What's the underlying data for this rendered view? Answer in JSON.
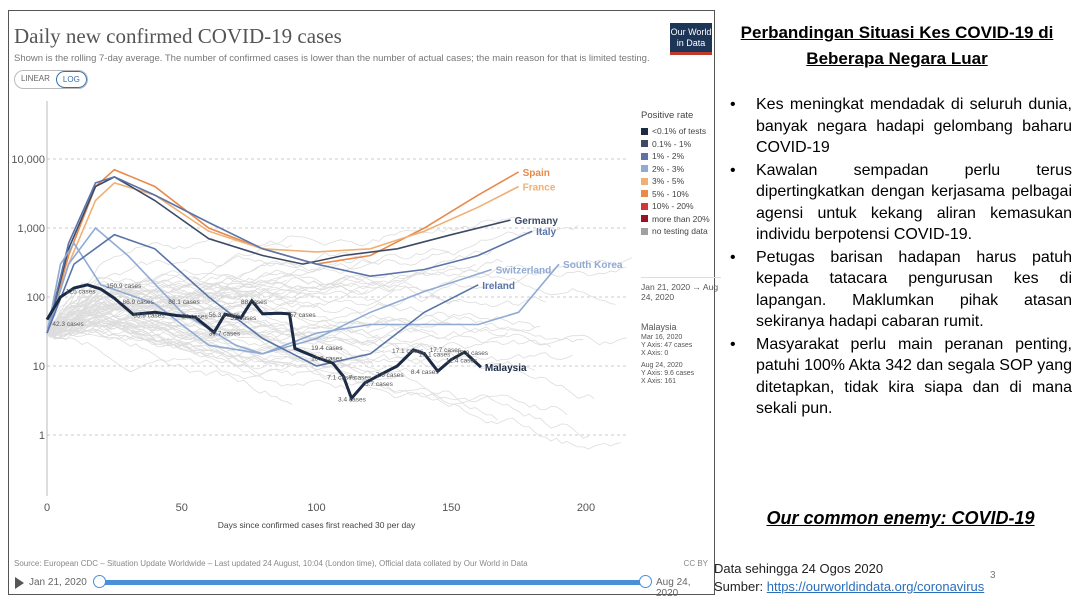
{
  "chart_panel": {
    "title": "Daily new confirmed COVID-19 cases",
    "subtitle": "Shown is the rolling 7-day average. The number of confirmed cases is lower than the number of actual cases; the main reason for that is limited testing.",
    "scale_toggle": {
      "linear": "LINEAR",
      "log": "LOG",
      "selected": "LOG"
    },
    "logo_text": "Our World in Data",
    "source": "Source: European CDC – Situation Update Worldwide – Last updated 24 August, 10:04 (London time), Official data collated by Our World in Data",
    "license": "CC BY",
    "timeline": {
      "start": "Jan 21, 2020",
      "end": "Aug 24, 2020",
      "range_start_fraction": 0,
      "range_end_fraction": 1
    },
    "legend": {
      "title": "Positive rate",
      "items": [
        {
          "label": "<0.1% of tests",
          "color": "#1c2b45"
        },
        {
          "label": "0.1% - 1%",
          "color": "#3d4a66"
        },
        {
          "label": "1% - 2%",
          "color": "#5a74a8"
        },
        {
          "label": "2% - 3%",
          "color": "#8faad3"
        },
        {
          "label": "3% - 5%",
          "color": "#f0b074"
        },
        {
          "label": "5% - 10%",
          "color": "#e98a4c"
        },
        {
          "label": "10% - 20%",
          "color": "#d6333b"
        },
        {
          "label": "more than 20%",
          "color": "#9b1126"
        },
        {
          "label": "no testing data",
          "color": "#a0a0a0"
        }
      ]
    },
    "time_range": {
      "start": "Jan 21, 2020",
      "end": "Aug 24, 2020"
    },
    "info": {
      "country": "Malaysia",
      "start_date": "Mar 16, 2020",
      "start_y": "Y Axis: 47 cases",
      "start_x": "X Axis: 0",
      "end_date": "Aug 24, 2020",
      "end_y": "Y Axis: 9.6 cases",
      "end_x": "X Axis: 161"
    }
  },
  "chart_data": {
    "type": "line",
    "title": "Daily new confirmed COVID-19 cases",
    "xlabel": "Days since confirmed cases first reached 30 per day",
    "ylabel": "",
    "xlim": [
      0,
      225
    ],
    "ylim": [
      0.5,
      50000
    ],
    "yscale": "log",
    "x_ticks": [
      0,
      50,
      100,
      150,
      200
    ],
    "y_ticks": [
      {
        "v": 1,
        "label": "1"
      },
      {
        "v": 10,
        "label": "10"
      },
      {
        "v": 100,
        "label": "100"
      },
      {
        "v": 1000,
        "label": "1,000"
      },
      {
        "v": 10000,
        "label": "10,000"
      }
    ],
    "series": [
      {
        "name": "Spain",
        "color": "#e98a4c",
        "points": [
          [
            0,
            30
          ],
          [
            8,
            400
          ],
          [
            18,
            4000
          ],
          [
            25,
            7000
          ],
          [
            40,
            4000
          ],
          [
            60,
            1000
          ],
          [
            80,
            500
          ],
          [
            100,
            300
          ],
          [
            120,
            400
          ],
          [
            140,
            1000
          ],
          [
            160,
            3000
          ],
          [
            175,
            6500
          ]
        ]
      },
      {
        "name": "France",
        "color": "#f0b074",
        "points": [
          [
            0,
            30
          ],
          [
            8,
            300
          ],
          [
            18,
            2500
          ],
          [
            25,
            4500
          ],
          [
            40,
            3000
          ],
          [
            60,
            900
          ],
          [
            80,
            500
          ],
          [
            100,
            450
          ],
          [
            120,
            500
          ],
          [
            140,
            900
          ],
          [
            160,
            2000
          ],
          [
            175,
            4000
          ]
        ]
      },
      {
        "name": "Germany",
        "color": "#3d4a66",
        "points": [
          [
            0,
            30
          ],
          [
            8,
            500
          ],
          [
            18,
            4000
          ],
          [
            25,
            5500
          ],
          [
            40,
            2500
          ],
          [
            60,
            700
          ],
          [
            80,
            400
          ],
          [
            95,
            300
          ],
          [
            110,
            400
          ],
          [
            130,
            500
          ],
          [
            150,
            800
          ],
          [
            172,
            1300
          ]
        ]
      },
      {
        "name": "Italy",
        "color": "#5a74a8",
        "points": [
          [
            0,
            30
          ],
          [
            8,
            600
          ],
          [
            18,
            4500
          ],
          [
            25,
            5500
          ],
          [
            40,
            3000
          ],
          [
            60,
            1200
          ],
          [
            80,
            500
          ],
          [
            100,
            300
          ],
          [
            120,
            200
          ],
          [
            140,
            250
          ],
          [
            160,
            400
          ],
          [
            180,
            900
          ]
        ]
      },
      {
        "name": "Switzerland",
        "color": "#8faad3",
        "points": [
          [
            0,
            30
          ],
          [
            8,
            300
          ],
          [
            18,
            1000
          ],
          [
            30,
            400
          ],
          [
            50,
            60
          ],
          [
            70,
            20
          ],
          [
            80,
            15
          ],
          [
            100,
            25
          ],
          [
            120,
            60
          ],
          [
            140,
            120
          ],
          [
            165,
            250
          ]
        ]
      },
      {
        "name": "South Korea",
        "color": "#8faad3",
        "points": [
          [
            0,
            30
          ],
          [
            5,
            300
          ],
          [
            10,
            600
          ],
          [
            20,
            150
          ],
          [
            40,
            80
          ],
          [
            60,
            20
          ],
          [
            80,
            15
          ],
          [
            100,
            30
          ],
          [
            120,
            40
          ],
          [
            140,
            40
          ],
          [
            160,
            40
          ],
          [
            175,
            60
          ],
          [
            190,
            300
          ]
        ]
      },
      {
        "name": "Ireland",
        "color": "#5a74a8",
        "points": [
          [
            0,
            30
          ],
          [
            10,
            300
          ],
          [
            25,
            800
          ],
          [
            40,
            500
          ],
          [
            60,
            100
          ],
          [
            80,
            25
          ],
          [
            100,
            10
          ],
          [
            120,
            15
          ],
          [
            140,
            60
          ],
          [
            160,
            150
          ]
        ]
      },
      {
        "name": "Malaysia",
        "color": "#1c2b45",
        "points": [
          [
            0,
            47
          ],
          [
            5,
            100
          ],
          [
            10,
            135
          ],
          [
            15,
            150
          ],
          [
            20,
            130
          ],
          [
            25,
            96
          ],
          [
            32,
            55.9
          ],
          [
            40,
            60
          ],
          [
            48,
            54
          ],
          [
            55,
            51
          ],
          [
            62,
            30.7
          ],
          [
            66,
            56.3
          ],
          [
            72,
            50
          ],
          [
            76,
            88
          ],
          [
            80,
            57
          ],
          [
            86,
            58
          ],
          [
            90,
            57
          ],
          [
            92,
            18
          ],
          [
            100,
            13.3
          ],
          [
            106,
            11
          ],
          [
            110,
            7.1
          ],
          [
            113,
            3.4
          ],
          [
            118,
            5.7
          ],
          [
            124,
            7.6
          ],
          [
            130,
            10
          ],
          [
            136,
            17.1
          ],
          [
            140,
            15.1
          ],
          [
            145,
            8.4
          ],
          [
            150,
            12.4
          ],
          [
            155,
            15.9
          ],
          [
            161,
            9.6
          ]
        ]
      }
    ],
    "annotations": [
      {
        "x": 2,
        "y": 42.3,
        "label": "42.3 cases"
      },
      {
        "x": 7,
        "y": 125,
        "label": "125 cases"
      },
      {
        "x": 22,
        "y": 150,
        "label": "150.9 cases"
      },
      {
        "x": 32,
        "y": 55.9,
        "label": "55.9 cases"
      },
      {
        "x": 28,
        "y": 88,
        "label": "86.9 cases"
      },
      {
        "x": 45,
        "y": 88,
        "label": "88.1 cases"
      },
      {
        "x": 50,
        "y": 54,
        "label": "54 cases"
      },
      {
        "x": 60,
        "y": 30.7,
        "label": "30.7 cases"
      },
      {
        "x": 60,
        "y": 56.3,
        "label": "56.3 cases"
      },
      {
        "x": 68,
        "y": 51,
        "label": "51 cases"
      },
      {
        "x": 72,
        "y": 88,
        "label": "88 cases"
      },
      {
        "x": 90,
        "y": 57,
        "label": "57 cases"
      },
      {
        "x": 98,
        "y": 19,
        "label": "19.4 cases"
      },
      {
        "x": 98,
        "y": 13.3,
        "label": "13.3 cases"
      },
      {
        "x": 104,
        "y": 7.1,
        "label": "7.1 cases"
      },
      {
        "x": 108,
        "y": 3.4,
        "label": "3.4 cases"
      },
      {
        "x": 118,
        "y": 5.7,
        "label": "5.7 cases"
      },
      {
        "x": 112,
        "y": 7,
        "label": "7 cases"
      },
      {
        "x": 122,
        "y": 7.6,
        "label": "7.6 cases"
      },
      {
        "x": 128,
        "y": 17.1,
        "label": "17.1 cases"
      },
      {
        "x": 138,
        "y": 15.1,
        "label": "15.1 cases"
      },
      {
        "x": 135,
        "y": 8.4,
        "label": "8.4 cases"
      },
      {
        "x": 142,
        "y": 17.7,
        "label": "17.7 cases"
      },
      {
        "x": 148,
        "y": 12.4,
        "label": "12.4 cases"
      },
      {
        "x": 152,
        "y": 15.9,
        "label": "15.9 cases"
      }
    ]
  },
  "slide": {
    "title": "Perbandingan Situasi Kes COVID-19 di Beberapa Negara Luar",
    "bullets": [
      "Kes meningkat mendadak di seluruh dunia, banyak negara hadapi gelombang baharu COVID-19",
      "Kawalan sempadan perlu terus dipertingkatkan dengan kerjasama pelbagai agensi untuk kekang aliran kemasukan individu berpotensi COVID-19.",
      "Petugas barisan hadapan harus patuh kepada tatacara pengurusan kes di lapangan. Maklumkan pihak atasan sekiranya hadapi cabaran rumit.",
      "Masyarakat perlu main peranan penting, patuhi 100% Akta 342 dan segala SOP yang ditetapkan, tidak kira siapa dan di mana sekali pun."
    ],
    "tagline": "Our common enemy: COVID-19",
    "data_date": "Data sehingga 24 Ogos 2020",
    "source_label": "Sumber: ",
    "source_link": "https://ourworldindata.org/coronavirus",
    "page_number": "3"
  }
}
